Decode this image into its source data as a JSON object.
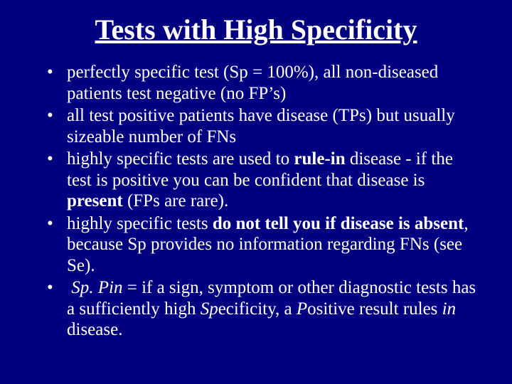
{
  "background_color": "#000080",
  "text_color": "#ffffff",
  "font_family": "Times New Roman",
  "title": {
    "text": "Tests with High Specificity",
    "fontsize": 40,
    "underline": true
  },
  "bullets": [
    {
      "segments": [
        {
          "text": "perfectly specific test (Sp = 100%), all non-diseased patients test negative (no FP’s)"
        }
      ]
    },
    {
      "segments": [
        {
          "text": "all test positive patients have disease (TPs) but usually sizeable number of FNs"
        }
      ]
    },
    {
      "segments": [
        {
          "text": "highly specific tests are used to "
        },
        {
          "text": "rule-in",
          "bold": true
        },
        {
          "text": " disease - if the test is positive you can be confident that disease is "
        },
        {
          "text": "present",
          "bold": true
        },
        {
          "text": " (FPs are rare)."
        }
      ]
    },
    {
      "segments": [
        {
          "text": "highly specific tests "
        },
        {
          "text": "do not tell you if disease is absent",
          "bold": true
        },
        {
          "text": ", because Sp provides no information regarding FNs  (see Se)."
        }
      ]
    },
    {
      "segments": [
        {
          "text": " "
        },
        {
          "text": "Sp. Pin",
          "italic": true
        },
        {
          "text": " =  if a sign, symptom or other diagnostic tests has a sufficiently high "
        },
        {
          "text": "Sp",
          "italic": true
        },
        {
          "text": "ecificity, a "
        },
        {
          "text": "P",
          "italic": true
        },
        {
          "text": "ositive result rules "
        },
        {
          "text": "in",
          "italic": true
        },
        {
          "text": " disease."
        }
      ]
    }
  ]
}
